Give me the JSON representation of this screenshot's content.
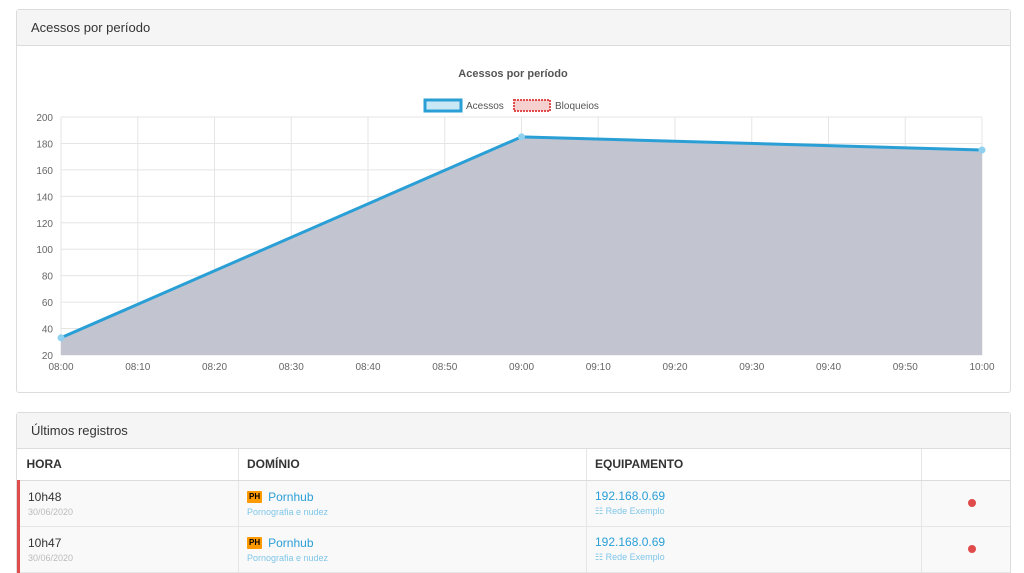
{
  "chart_panel": {
    "heading": "Acessos por período"
  },
  "chart_data": {
    "type": "area",
    "title": "Acessos por período",
    "x": [
      "08:00",
      "08:10",
      "08:20",
      "08:30",
      "08:40",
      "08:50",
      "09:00",
      "09:10",
      "09:20",
      "09:30",
      "09:40",
      "09:50",
      "10:00"
    ],
    "series": [
      {
        "name": "Acessos",
        "points": [
          {
            "x": "08:00",
            "y": 33
          },
          {
            "x": "09:00",
            "y": 185
          },
          {
            "x": "10:00",
            "y": 175
          }
        ],
        "color": "#2a9fd6",
        "fill": "#c2c4d0"
      },
      {
        "name": "Bloqueios",
        "points": [],
        "color": "#e04b4b"
      }
    ],
    "ylim": [
      20,
      200
    ],
    "yticks": [
      20,
      40,
      60,
      80,
      100,
      120,
      140,
      160,
      180,
      200
    ],
    "grid": true,
    "legend": "top"
  },
  "table_panel": {
    "heading": "Últimos registros",
    "columns": [
      "HORA",
      "DOMÍNIO",
      "EQUIPAMENTO",
      ""
    ],
    "rows": [
      {
        "hora": "10h48",
        "data": "30/06/2020",
        "badge": "PH",
        "dominio": "Pornhub",
        "categoria": "Pornografia e nudez",
        "ip": "192.168.0.69",
        "rede": "Rede Exemplo",
        "status_color": "#e04b4b"
      },
      {
        "hora": "10h47",
        "data": "30/06/2020",
        "badge": "PH",
        "dominio": "Pornhub",
        "categoria": "Pornografia e nudez",
        "ip": "192.168.0.69",
        "rede": "Rede Exemplo",
        "status_color": "#e04b4b"
      }
    ]
  }
}
